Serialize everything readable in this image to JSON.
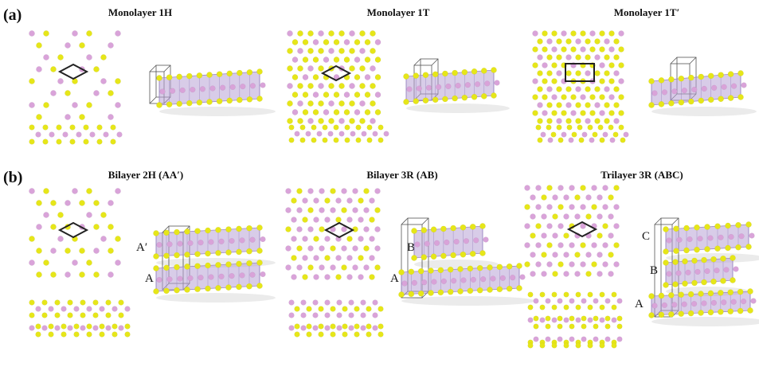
{
  "panel_labels": {
    "a": "(a)",
    "b": "(b)"
  },
  "titles": {
    "mono_1h": "Monolayer 1H",
    "mono_1t": "Monolayer 1T",
    "mono_1t_prime": "Monolayer 1T′",
    "bi_2h": "Bilayer 2H (AA′)",
    "bi_3r": "Bilayer 3R (AB)",
    "tri_3r": "Trilayer 3R (ABC)"
  },
  "layer_labels": {
    "bi_2h": [
      "A′",
      "A"
    ],
    "bi_3r": [
      "B",
      "A"
    ],
    "tri_3r": [
      "C",
      "B",
      "A"
    ]
  },
  "colors": {
    "chalcogen": "#e6e619",
    "metal": "#d9a3d9",
    "polyhedron": "#b8a3d6",
    "cell_outline": "#222222"
  }
}
